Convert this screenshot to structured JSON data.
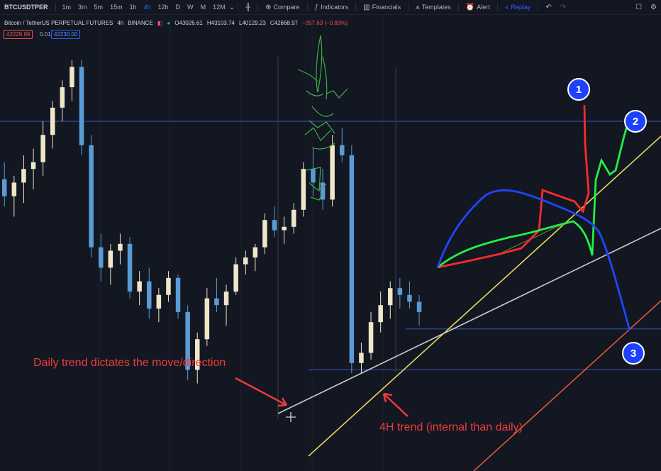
{
  "toolbar": {
    "symbol": "BTCUSDTPER",
    "intervals": [
      "1m",
      "3m",
      "5m",
      "15m",
      "1h",
      "4h",
      "12h",
      "D",
      "W",
      "M",
      "12M"
    ],
    "active_interval": "4h",
    "compare": "Compare",
    "indicators": "Indicators",
    "financials": "Financials",
    "templates": "Templates",
    "alert": "Alert",
    "replay": "Replay"
  },
  "legend": {
    "title": "Bitcoin / TetherUS PERPETUAL FUTURES",
    "interval": "4h",
    "exchange": "BINANCE",
    "open": "O43026.61",
    "high": "H43103.74",
    "low": "L40129.23",
    "close": "C42668.97",
    "change": "−357.63 (−0.83%)",
    "bid": "42229.99",
    "spread": "0.01",
    "ask": "42230.00"
  },
  "annotations": {
    "daily": "Daily trend dictates the move/direction",
    "h4": "4H trend (internal than daily)",
    "scenario_1": "1",
    "scenario_2": "2",
    "scenario_3": "3"
  },
  "colors": {
    "up": "#f0e6c8",
    "down": "#5b9bd5",
    "hline": "#3a56c8",
    "daily_trend": "#c8c8c8",
    "h4_trend": "#e8d55a",
    "channel": "#e2553a",
    "scenario_1": "#ff2a2a",
    "scenario_2": "#22ee44",
    "scenario_3": "#2244ff",
    "annotation": "#ef3b3b",
    "sketch": "#3fae4a"
  },
  "chart_data": {
    "type": "candlestick",
    "candles": [
      {
        "o": 0.63,
        "h": 0.68,
        "l": 0.55,
        "c": 0.58
      },
      {
        "o": 0.58,
        "h": 0.64,
        "l": 0.52,
        "c": 0.62
      },
      {
        "o": 0.62,
        "h": 0.7,
        "l": 0.56,
        "c": 0.66
      },
      {
        "o": 0.66,
        "h": 0.72,
        "l": 0.6,
        "c": 0.68
      },
      {
        "o": 0.68,
        "h": 0.8,
        "l": 0.64,
        "c": 0.76
      },
      {
        "o": 0.76,
        "h": 0.86,
        "l": 0.72,
        "c": 0.84
      },
      {
        "o": 0.84,
        "h": 0.92,
        "l": 0.8,
        "c": 0.9
      },
      {
        "o": 0.9,
        "h": 0.98,
        "l": 0.86,
        "c": 0.96
      },
      {
        "o": 0.96,
        "h": 0.98,
        "l": 0.7,
        "c": 0.73
      },
      {
        "o": 0.73,
        "h": 0.76,
        "l": 0.4,
        "c": 0.43
      },
      {
        "o": 0.43,
        "h": 0.47,
        "l": 0.33,
        "c": 0.37
      },
      {
        "o": 0.37,
        "h": 0.44,
        "l": 0.32,
        "c": 0.42
      },
      {
        "o": 0.42,
        "h": 0.47,
        "l": 0.38,
        "c": 0.44
      },
      {
        "o": 0.44,
        "h": 0.46,
        "l": 0.28,
        "c": 0.3
      },
      {
        "o": 0.3,
        "h": 0.36,
        "l": 0.26,
        "c": 0.33
      },
      {
        "o": 0.33,
        "h": 0.37,
        "l": 0.22,
        "c": 0.25
      },
      {
        "o": 0.25,
        "h": 0.31,
        "l": 0.21,
        "c": 0.29
      },
      {
        "o": 0.29,
        "h": 0.36,
        "l": 0.27,
        "c": 0.34
      },
      {
        "o": 0.34,
        "h": 0.35,
        "l": 0.22,
        "c": 0.24
      },
      {
        "o": 0.24,
        "h": 0.26,
        "l": 0.04,
        "c": 0.07
      },
      {
        "o": 0.07,
        "h": 0.18,
        "l": 0.03,
        "c": 0.16
      },
      {
        "o": 0.16,
        "h": 0.31,
        "l": 0.14,
        "c": 0.28
      },
      {
        "o": 0.28,
        "h": 0.34,
        "l": 0.24,
        "c": 0.26
      },
      {
        "o": 0.26,
        "h": 0.32,
        "l": 0.2,
        "c": 0.3
      },
      {
        "o": 0.3,
        "h": 0.4,
        "l": 0.29,
        "c": 0.38
      },
      {
        "o": 0.38,
        "h": 0.42,
        "l": 0.35,
        "c": 0.4
      },
      {
        "o": 0.4,
        "h": 0.44,
        "l": 0.36,
        "c": 0.43
      },
      {
        "o": 0.43,
        "h": 0.53,
        "l": 0.41,
        "c": 0.51
      },
      {
        "o": 0.51,
        "h": 0.55,
        "l": 0.46,
        "c": 0.48
      },
      {
        "o": 0.48,
        "h": 0.52,
        "l": 0.44,
        "c": 0.49
      },
      {
        "o": 0.49,
        "h": 0.56,
        "l": 0.47,
        "c": 0.54
      },
      {
        "o": 0.54,
        "h": 0.68,
        "l": 0.52,
        "c": 0.66
      },
      {
        "o": 0.66,
        "h": 0.72,
        "l": 0.58,
        "c": 0.62
      },
      {
        "o": 0.62,
        "h": 0.66,
        "l": 0.54,
        "c": 0.57
      },
      {
        "o": 0.57,
        "h": 0.76,
        "l": 0.55,
        "c": 0.73
      },
      {
        "o": 0.73,
        "h": 0.78,
        "l": 0.68,
        "c": 0.7
      },
      {
        "o": 0.7,
        "h": 0.73,
        "l": 0.06,
        "c": 0.09
      },
      {
        "o": 0.09,
        "h": 0.15,
        "l": 0.06,
        "c": 0.12
      },
      {
        "o": 0.12,
        "h": 0.24,
        "l": 0.1,
        "c": 0.21
      },
      {
        "o": 0.21,
        "h": 0.3,
        "l": 0.18,
        "c": 0.26
      },
      {
        "o": 0.26,
        "h": 0.33,
        "l": 0.22,
        "c": 0.31
      },
      {
        "o": 0.31,
        "h": 0.34,
        "l": 0.25,
        "c": 0.29
      },
      {
        "o": 0.29,
        "h": 0.33,
        "l": 0.25,
        "c": 0.27
      },
      {
        "o": 0.27,
        "h": 0.29,
        "l": 0.2,
        "c": 0.24
      }
    ],
    "horizontal_levels": [
      0.8,
      0.19,
      0.07
    ]
  }
}
